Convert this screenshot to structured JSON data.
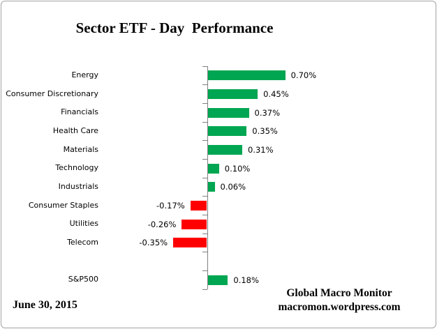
{
  "title": "Sector ETF - Day  Performance",
  "chart_data": {
    "type": "bar",
    "orientation": "horizontal",
    "title": "Sector ETF - Day  Performance",
    "categories": [
      "Energy",
      "Consumer Discretionary",
      "Financials",
      "Health Care",
      "Materials",
      "Technology",
      "Industrials",
      "Consumer Staples",
      "Utilities",
      "Telecom",
      "",
      "S&P500"
    ],
    "values": [
      0.7,
      0.45,
      0.37,
      0.35,
      0.31,
      0.1,
      0.06,
      -0.17,
      -0.26,
      -0.35,
      null,
      0.18
    ],
    "value_labels": [
      "0.70%",
      "0.45%",
      "0.37%",
      "0.35%",
      "0.31%",
      "0.10%",
      "0.06%",
      "-0.17%",
      "-0.26%",
      "-0.35%",
      "",
      "0.18%"
    ],
    "xlabel": "",
    "ylabel": "",
    "grid": false,
    "legend": false,
    "positive_color": "#00A651",
    "negative_color": "#FF0000",
    "axis_color": "#808080",
    "text_color": "#000000"
  },
  "footer": {
    "date": "June 30, 2015",
    "brand_line1": "Global Macro Monitor",
    "brand_line2": "macromon.wordpress.com"
  }
}
